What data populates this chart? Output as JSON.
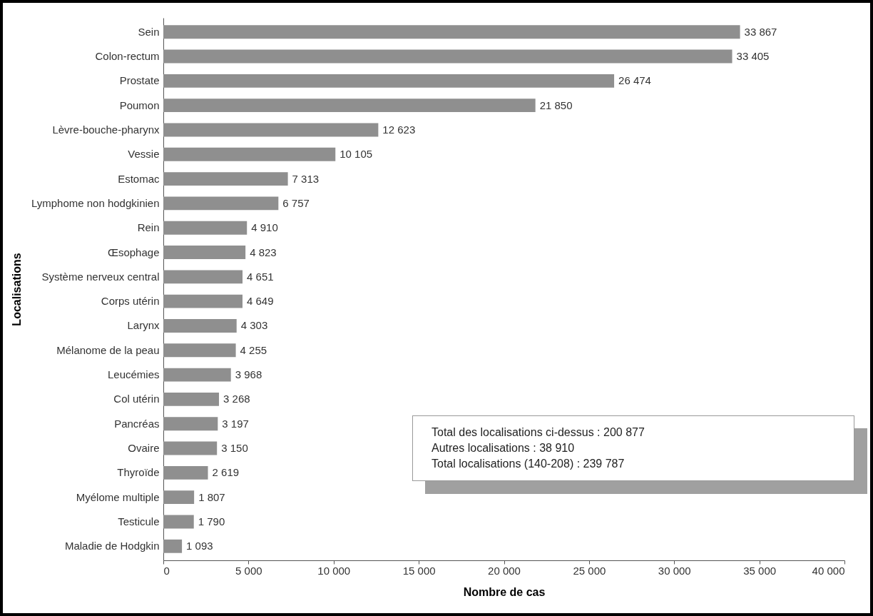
{
  "chart_data": {
    "type": "bar",
    "orientation": "horizontal",
    "xlabel": "Nombre de cas",
    "ylabel": "Localisations",
    "categories": [
      "Sein",
      "Colon-rectum",
      "Prostate",
      "Poumon",
      "Lèvre-bouche-pharynx",
      "Vessie",
      "Estomac",
      "Lymphome non hodgkinien",
      "Rein",
      "Œsophage",
      "Système nerveux central",
      "Corps utérin",
      "Larynx",
      "Mélanome de la peau",
      "Leucémies",
      "Col utérin",
      "Pancréas",
      "Ovaire",
      "Thyroïde",
      "Myélome multiple",
      "Testicule",
      "Maladie de Hodgkin"
    ],
    "values": [
      33867,
      33405,
      26474,
      21850,
      12623,
      10105,
      7313,
      6757,
      4910,
      4823,
      4651,
      4649,
      4303,
      4255,
      3968,
      3268,
      3197,
      3150,
      2619,
      1807,
      1790,
      1093
    ],
    "value_labels": [
      "33 867",
      "33 405",
      "26 474",
      "21 850",
      "12 623",
      "10 105",
      "7 313",
      "6 757",
      "4 910",
      "4 823",
      "4 651",
      "4 649",
      "4 303",
      "4 255",
      "3 968",
      "3 268",
      "3 197",
      "3 150",
      "2 619",
      "1 807",
      "1 790",
      "1 093"
    ],
    "color": "#8f8f8f",
    "xlim": [
      0,
      40000
    ],
    "xticks": [
      0,
      {
        "value": 5000,
        "label": "5 000"
      },
      {
        "value": 10000,
        "label": "10 000"
      },
      {
        "value": 15000,
        "label": "15 000"
      },
      {
        "value": 20000,
        "label": "20 000"
      },
      {
        "value": 25000,
        "label": "25 000"
      },
      {
        "value": 30000,
        "label": "30 000"
      },
      {
        "value": 35000,
        "label": "35 000"
      },
      {
        "value": 40000,
        "label": "40 000"
      }
    ],
    "grid": false,
    "annotations": [
      "Total des localisations ci-dessus : 200 877",
      "Autres localisations : 38 910",
      "Total localisations (140-208) : 239 787"
    ]
  }
}
